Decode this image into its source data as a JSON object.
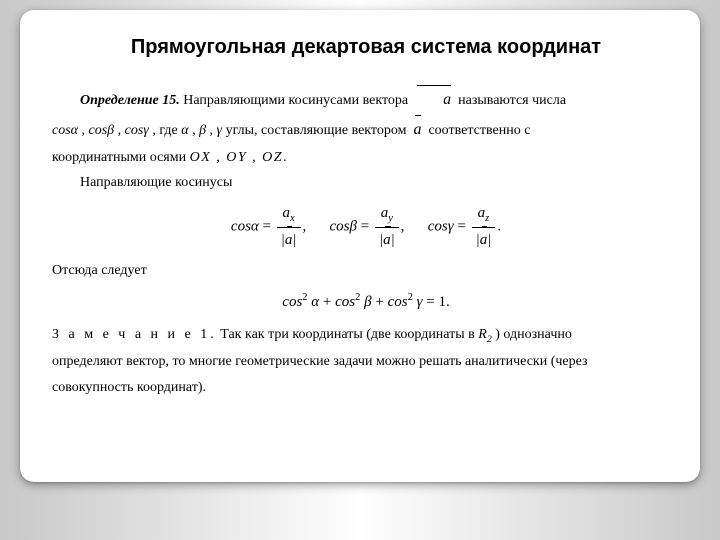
{
  "colors": {
    "panel_bg": "#ffffff",
    "text": "#000000",
    "stage_grad_edge": "#c8c8c8",
    "stage_grad_center": "#ffffff"
  },
  "typography": {
    "title_family": "Arial",
    "title_size_pt": 20,
    "title_weight": 700,
    "body_family": "Times New Roman",
    "body_size_pt": 14
  },
  "title": "Прямоугольная декартовая система координат",
  "definition": {
    "head": "Определение 15.",
    "line1_a": "Направляющими косинусами вектора ",
    "vec_a": "a",
    "line1_b": " называются числа",
    "cos_list": "cosα ,   cosβ ,   cosγ ,",
    "tail_a": " где ",
    "angles": "α , β , γ",
    "tail_b": " углы, составляющие вектором ",
    "tail_c": " соответственно с",
    "line3_a": "координатными осями ",
    "axes": "OX ,   OY ,   OZ",
    "dot": "."
  },
  "subhead1": "Направляющие косинусы",
  "eq1": {
    "terms": [
      {
        "lhs": "cosα",
        "num_sym": "a",
        "num_sub": "x"
      },
      {
        "lhs": "cosβ",
        "num_sym": "a",
        "num_sub": "y"
      },
      {
        "lhs": "cosγ",
        "num_sym": "a",
        "num_sub": "z"
      }
    ],
    "den_sym": "a",
    "sep": ",",
    "end": "."
  },
  "subhead2": "Отсюда следует",
  "eq2": {
    "text_a": "cos",
    "parts": [
      "α",
      "β",
      "γ"
    ],
    "sup": "2",
    "rhs": "1",
    "end": "."
  },
  "remark": {
    "head": "З а м е ч а н и е 1.",
    "a": " Так как три координаты (две координаты в ",
    "space": "R",
    "space_sub": "2",
    "b": " ) однозначно",
    "c": "определяют вектор, то многие геометрические задачи можно решать аналитически (через",
    "d": "совокупность координат)."
  }
}
